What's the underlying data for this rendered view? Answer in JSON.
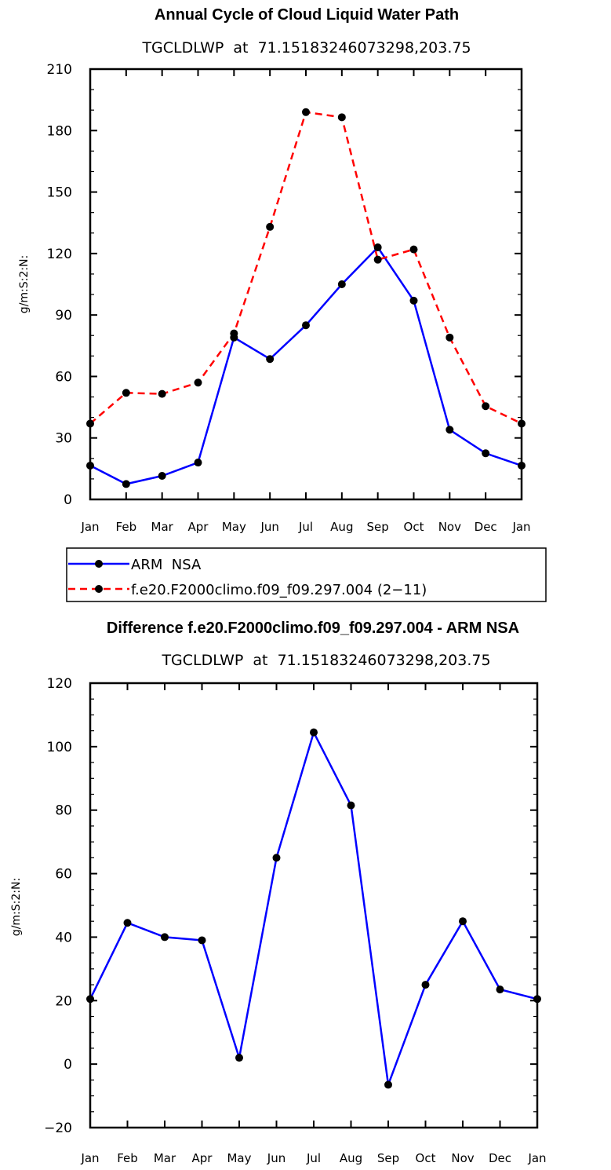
{
  "chart_data": [
    {
      "type": "line",
      "title": "Annual Cycle of Cloud Liquid Water Path",
      "subtitle": "TGCLDLWP  at  71.15183246073298,203.75",
      "xlabel": "",
      "ylabel": "g/m:S:2:N:",
      "categories": [
        "Jan",
        "Feb",
        "Mar",
        "Apr",
        "May",
        "Jun",
        "Jul",
        "Aug",
        "Sep",
        "Oct",
        "Nov",
        "Dec",
        "Jan"
      ],
      "ylim": [
        0,
        210
      ],
      "yticks": [
        0,
        30,
        60,
        90,
        120,
        150,
        180,
        210
      ],
      "yminor_step": 10,
      "series": [
        {
          "name": "ARM  NSA",
          "color": "#0000ff",
          "dash": "solid",
          "values": [
            16.5,
            7.5,
            11.5,
            18,
            79,
            68.5,
            85,
            105,
            123,
            97,
            34,
            22.5,
            16.5
          ]
        },
        {
          "name": "f.e20.F2000climo.f09_f09.297.004 (2−11)",
          "color": "#ff0000",
          "dash": "dashed",
          "values": [
            37,
            52,
            51.5,
            57,
            81,
            133,
            189,
            186.5,
            117,
            122,
            79,
            45.5,
            37
          ]
        }
      ],
      "legend": "below"
    },
    {
      "type": "line",
      "title": "Difference f.e20.F2000climo.f09_f09.297.004 - ARM NSA",
      "subtitle": "TGCLDLWP  at  71.15183246073298,203.75",
      "xlabel": "",
      "ylabel": "g/m:S:2:N:",
      "categories": [
        "Jan",
        "Feb",
        "Mar",
        "Apr",
        "May",
        "Jun",
        "Jul",
        "Aug",
        "Sep",
        "Oct",
        "Nov",
        "Dec",
        "Jan"
      ],
      "ylim": [
        -20,
        120
      ],
      "yticks": [
        -20,
        0,
        20,
        40,
        60,
        80,
        100,
        120
      ],
      "yminor_step": 5,
      "series": [
        {
          "name": "Difference",
          "color": "#0000ff",
          "dash": "solid",
          "values": [
            20.5,
            44.5,
            40,
            39,
            2,
            65,
            104.5,
            81.5,
            -6.5,
            25,
            45,
            23.5,
            20.5
          ]
        }
      ]
    }
  ]
}
